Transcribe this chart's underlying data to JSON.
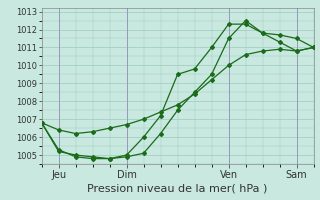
{
  "background_color": "#c8e8e0",
  "grid_color": "#99ccbb",
  "line_color": "#1a6b1a",
  "marker_color": "#1a6b1a",
  "xlabel": "Pression niveau de la mer( hPa )",
  "xlabel_fontsize": 8,
  "yticks": [
    1005,
    1006,
    1007,
    1008,
    1009,
    1010,
    1011,
    1012,
    1013
  ],
  "ylim": [
    1004.5,
    1013.2
  ],
  "xlim": [
    0,
    96
  ],
  "xtick_positions": [
    6,
    30,
    66,
    90
  ],
  "xtick_labels": [
    "Jeu",
    "Dim",
    "Ven",
    "Sam"
  ],
  "series1_x": [
    0,
    6,
    12,
    18,
    24,
    30,
    36,
    42,
    48,
    54,
    60,
    66,
    72,
    78,
    84,
    90,
    96
  ],
  "series1_y": [
    1006.8,
    1006.4,
    1006.2,
    1006.3,
    1006.5,
    1006.7,
    1007.0,
    1007.4,
    1007.8,
    1008.4,
    1009.2,
    1010.0,
    1010.6,
    1010.8,
    1010.9,
    1010.8,
    1011.0
  ],
  "series2_x": [
    0,
    6,
    12,
    18,
    24,
    30,
    36,
    42,
    48,
    54,
    60,
    66,
    72,
    78,
    84,
    90,
    96
  ],
  "series2_y": [
    1006.8,
    1005.2,
    1005.0,
    1004.9,
    1004.8,
    1004.9,
    1005.1,
    1006.2,
    1007.5,
    1008.5,
    1009.5,
    1011.5,
    1012.5,
    1011.8,
    1011.3,
    1010.8,
    1011.0
  ],
  "series3_x": [
    0,
    6,
    12,
    18,
    24,
    30,
    36,
    42,
    48,
    54,
    60,
    66,
    72,
    78,
    84,
    90,
    96
  ],
  "series3_y": [
    1006.8,
    1005.3,
    1004.9,
    1004.8,
    1004.8,
    1005.0,
    1006.0,
    1007.2,
    1009.5,
    1009.8,
    1011.0,
    1012.3,
    1012.3,
    1011.8,
    1011.7,
    1011.5,
    1011.0
  ],
  "vline_positions": [
    6,
    30,
    66,
    90
  ],
  "vline_color": "#9999bb"
}
